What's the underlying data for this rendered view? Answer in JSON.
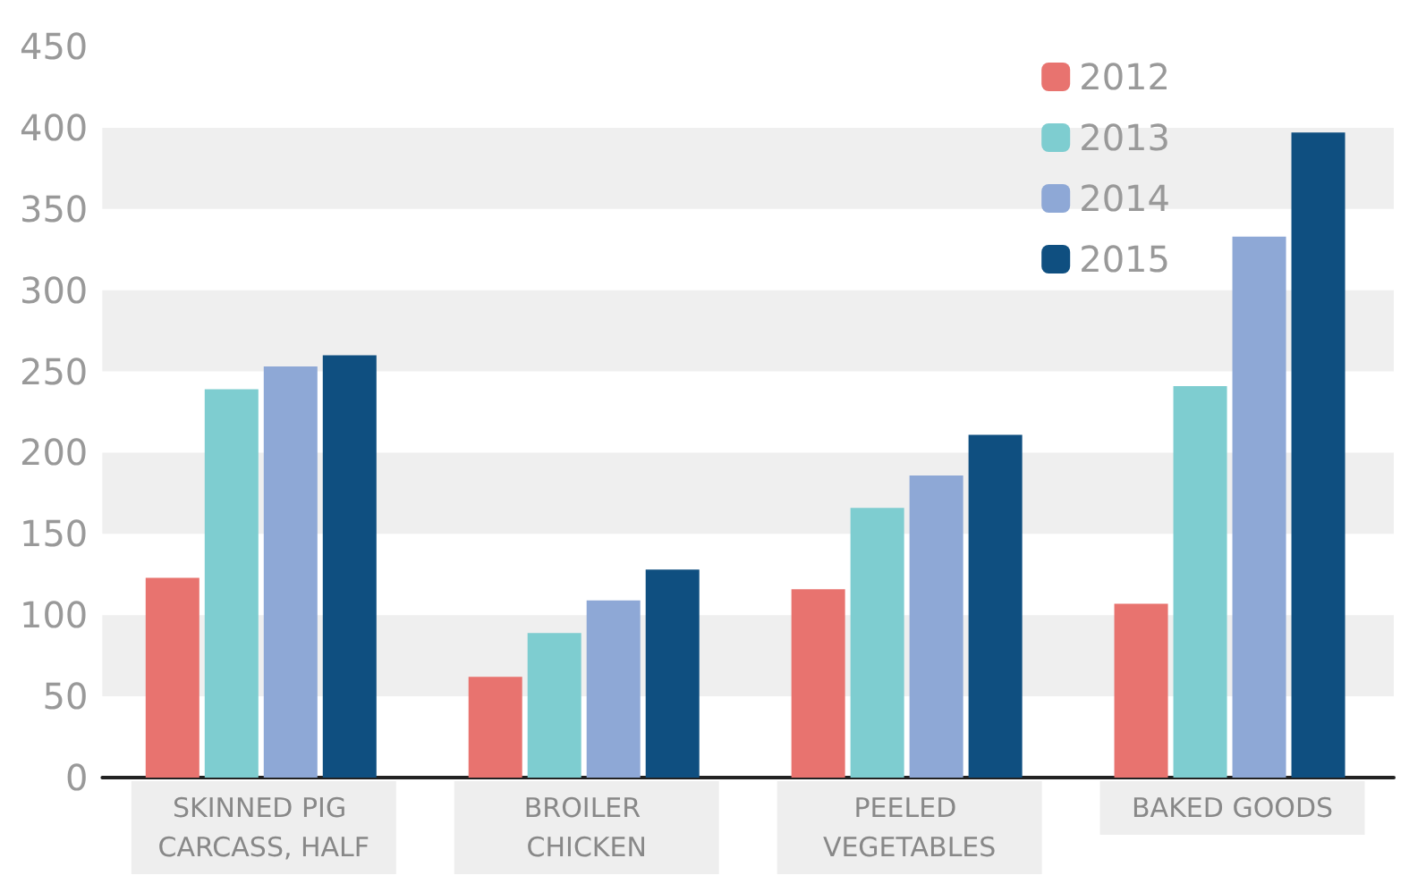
{
  "chart_data": {
    "type": "bar",
    "categories": [
      "SKINNED PIG CARCASS, HALF",
      "BROILER CHICKEN",
      "PEELED VEGETABLES",
      "BAKED GOODS"
    ],
    "series": [
      {
        "name": "2012",
        "color": "#e8736f",
        "values": [
          123,
          62,
          116,
          107
        ]
      },
      {
        "name": "2013",
        "color": "#7ecdd0",
        "values": [
          239,
          89,
          166,
          241
        ]
      },
      {
        "name": "2014",
        "color": "#8ea8d6",
        "values": [
          253,
          109,
          186,
          333
        ]
      },
      {
        "name": "2015",
        "color": "#0f4f80",
        "values": [
          260,
          128,
          211,
          397
        ]
      }
    ],
    "ylim": [
      0,
      450
    ],
    "yticks": [
      0,
      50,
      100,
      150,
      200,
      250,
      300,
      350,
      400,
      450
    ],
    "bands": [
      {
        "axis": "y",
        "from": 50,
        "to": 100,
        "color": "#efefef"
      },
      {
        "axis": "y",
        "from": 150,
        "to": 200,
        "color": "#efefef"
      },
      {
        "axis": "y",
        "from": 250,
        "to": 300,
        "color": "#efefef"
      },
      {
        "axis": "y",
        "from": 350,
        "to": 400,
        "color": "#efefef"
      }
    ],
    "legend": "top right"
  }
}
